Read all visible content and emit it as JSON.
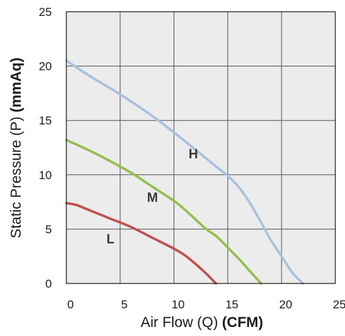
{
  "chart_data": {
    "type": "line",
    "xlabel": {
      "text": "Air Flow (Q) ",
      "bold": "(CFM)"
    },
    "ylabel": {
      "text": "Static Pressure (P) ",
      "bold": "(mmAq)"
    },
    "xlim": [
      0,
      25
    ],
    "ylim": [
      0,
      25
    ],
    "xticks": [
      0,
      5,
      10,
      15,
      20,
      25
    ],
    "yticks": [
      0,
      5,
      10,
      15,
      20,
      25
    ],
    "grid": true,
    "plot_background": "#ececec",
    "series": [
      {
        "name": "H",
        "color": "#a8c1df",
        "label_at": [
          11.8,
          11.5
        ],
        "points": [
          [
            0,
            20.5
          ],
          [
            2,
            19.2
          ],
          [
            5,
            17.4
          ],
          [
            8,
            15.4
          ],
          [
            10,
            13.9
          ],
          [
            12,
            12.3
          ],
          [
            14,
            10.7
          ],
          [
            15,
            9.9
          ],
          [
            16,
            8.9
          ],
          [
            17,
            7.5
          ],
          [
            18,
            5.8
          ],
          [
            19,
            4.0
          ],
          [
            20,
            2.5
          ],
          [
            21,
            1.0
          ],
          [
            22,
            0
          ]
        ]
      },
      {
        "name": "M",
        "color": "#93bf4f",
        "label_at": [
          8.0,
          7.5
        ],
        "points": [
          [
            0,
            13.2
          ],
          [
            2,
            12.3
          ],
          [
            4,
            11.3
          ],
          [
            6,
            10.2
          ],
          [
            8,
            8.9
          ],
          [
            10,
            7.6
          ],
          [
            11,
            6.8
          ],
          [
            12,
            5.9
          ],
          [
            13,
            5.0
          ],
          [
            14,
            4.3
          ],
          [
            15,
            3.3
          ],
          [
            16,
            2.3
          ],
          [
            17,
            1.2
          ],
          [
            18.1,
            0
          ]
        ]
      },
      {
        "name": "L",
        "color": "#c0504d",
        "label_at": [
          4.1,
          3.7
        ],
        "points": [
          [
            0,
            7.4
          ],
          [
            1,
            7.2
          ],
          [
            2,
            6.8
          ],
          [
            4,
            6.0
          ],
          [
            6,
            5.2
          ],
          [
            8,
            4.2
          ],
          [
            10,
            3.2
          ],
          [
            11,
            2.6
          ],
          [
            12,
            1.8
          ],
          [
            13,
            0.9
          ],
          [
            13.9,
            0
          ]
        ]
      }
    ]
  }
}
